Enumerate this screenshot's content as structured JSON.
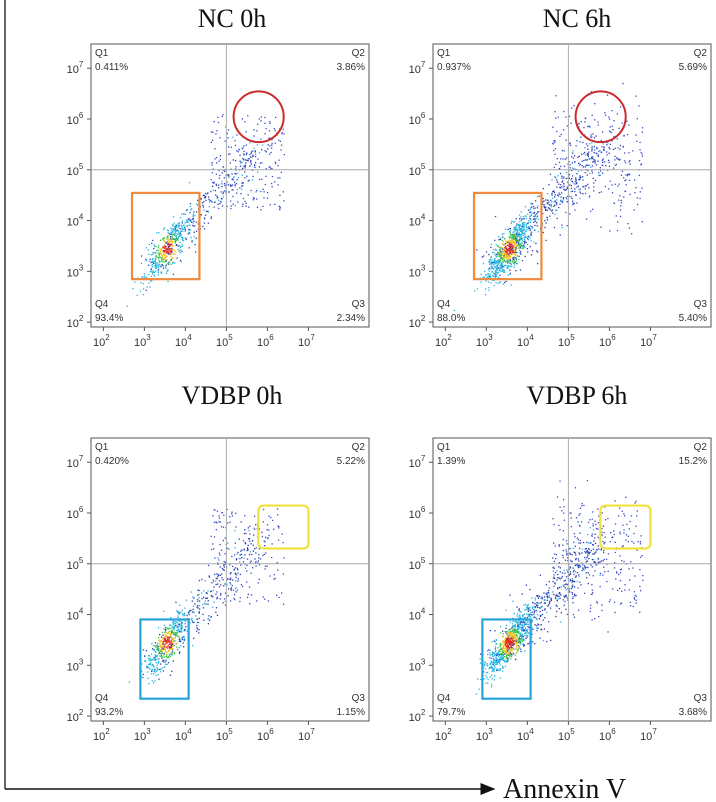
{
  "axis_label": "Annexin V",
  "chart_data": [
    {
      "type": "scatter",
      "title": "NC 0h",
      "xlabel": "Annexin V",
      "ylabel": "",
      "x_scale": "log",
      "y_scale": "log",
      "xlim": [
        50,
        300000000
      ],
      "ylim": [
        80,
        30000000
      ],
      "x_ticks": [
        "10^2",
        "10^3",
        "10^4",
        "10^5",
        "10^6",
        "10^7"
      ],
      "y_ticks": [
        "10^2",
        "10^3",
        "10^4",
        "10^5",
        "10^6",
        "10^7"
      ],
      "gate": {
        "x": 100000,
        "y": 100000
      },
      "quadrants": {
        "Q1": {
          "label": "Q1",
          "value": "0.411%"
        },
        "Q2": {
          "label": "Q2",
          "value": "3.86%"
        },
        "Q3": {
          "label": "Q3",
          "value": "2.34%"
        },
        "Q4": {
          "label": "Q4",
          "value": "93.4%"
        }
      },
      "annotations": [
        {
          "shape": "rect",
          "color": "#f08a3c",
          "x0": 500,
          "x1": 22000,
          "y0": 700,
          "y1": 35000
        },
        {
          "shape": "ellipse",
          "color": "#cc2b2b",
          "x0": 150000,
          "x1": 2500000,
          "y0": 350000,
          "y1": 3500000
        }
      ]
    },
    {
      "type": "scatter",
      "title": "NC 6h",
      "xlabel": "Annexin V",
      "ylabel": "",
      "x_scale": "log",
      "y_scale": "log",
      "xlim": [
        50,
        300000000
      ],
      "ylim": [
        80,
        30000000
      ],
      "x_ticks": [
        "10^2",
        "10^3",
        "10^4",
        "10^5",
        "10^6",
        "10^7"
      ],
      "y_ticks": [
        "10^2",
        "10^3",
        "10^4",
        "10^5",
        "10^6",
        "10^7"
      ],
      "gate": {
        "x": 100000,
        "y": 100000
      },
      "quadrants": {
        "Q1": {
          "label": "Q1",
          "value": "0.937%"
        },
        "Q2": {
          "label": "Q2",
          "value": "5.69%"
        },
        "Q3": {
          "label": "Q3",
          "value": "5.40%"
        },
        "Q4": {
          "label": "Q4",
          "value": "88.0%"
        }
      },
      "annotations": [
        {
          "shape": "rect",
          "color": "#f08a3c",
          "x0": 500,
          "x1": 22000,
          "y0": 700,
          "y1": 35000
        },
        {
          "shape": "ellipse",
          "color": "#cc2b2b",
          "x0": 150000,
          "x1": 2500000,
          "y0": 350000,
          "y1": 3500000
        }
      ]
    },
    {
      "type": "scatter",
      "title": "VDBP 0h",
      "xlabel": "Annexin V",
      "ylabel": "",
      "x_scale": "log",
      "y_scale": "log",
      "xlim": [
        50,
        300000000
      ],
      "ylim": [
        80,
        30000000
      ],
      "x_ticks": [
        "10^2",
        "10^3",
        "10^4",
        "10^5",
        "10^6",
        "10^7"
      ],
      "y_ticks": [
        "10^2",
        "10^3",
        "10^4",
        "10^5",
        "10^6",
        "10^7"
      ],
      "gate": {
        "x": 100000,
        "y": 100000
      },
      "quadrants": {
        "Q1": {
          "label": "Q1",
          "value": "0.420%"
        },
        "Q2": {
          "label": "Q2",
          "value": "5.22%"
        },
        "Q3": {
          "label": "Q3",
          "value": "1.15%"
        },
        "Q4": {
          "label": "Q4",
          "value": "93.2%"
        }
      },
      "annotations": [
        {
          "shape": "rect",
          "color": "#25a3da",
          "x0": 800,
          "x1": 12000,
          "y0": 220,
          "y1": 8000
        },
        {
          "shape": "rect",
          "color": "#f0e23a",
          "x0": 600000,
          "x1": 10000000,
          "y0": 200000,
          "y1": 1400000
        }
      ]
    },
    {
      "type": "scatter",
      "title": "VDBP 6h",
      "xlabel": "Annexin V",
      "ylabel": "",
      "x_scale": "log",
      "y_scale": "log",
      "xlim": [
        50,
        300000000
      ],
      "ylim": [
        80,
        30000000
      ],
      "x_ticks": [
        "10^2",
        "10^3",
        "10^4",
        "10^5",
        "10^6",
        "10^7"
      ],
      "y_ticks": [
        "10^2",
        "10^3",
        "10^4",
        "10^5",
        "10^6",
        "10^7"
      ],
      "gate": {
        "x": 100000,
        "y": 100000
      },
      "quadrants": {
        "Q1": {
          "label": "Q1",
          "value": "1.39%"
        },
        "Q2": {
          "label": "Q2",
          "value": "15.2%"
        },
        "Q3": {
          "label": "Q3",
          "value": "3.68%"
        },
        "Q4": {
          "label": "Q4",
          "value": "79.7%"
        }
      },
      "annotations": [
        {
          "shape": "rect",
          "color": "#25a3da",
          "x0": 800,
          "x1": 12000,
          "y0": 220,
          "y1": 8000
        },
        {
          "shape": "rect",
          "color": "#f0e23a",
          "x0": 600000,
          "x1": 10000000,
          "y0": 200000,
          "y1": 1400000
        }
      ]
    }
  ]
}
